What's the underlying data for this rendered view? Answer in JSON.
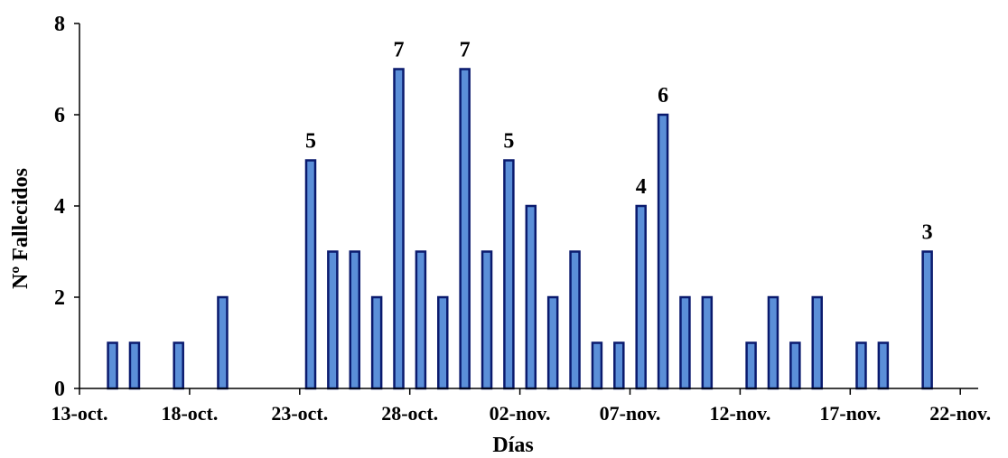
{
  "chart_data": {
    "type": "bar",
    "xlabel": "Días",
    "ylabel": "Nº Fallecidos",
    "ylim": [
      0,
      8
    ],
    "yticks": [
      "0",
      "2",
      "4",
      "6",
      "8"
    ],
    "x_start": "13-oct.",
    "xticks": [
      "13-oct.",
      "18-oct.",
      "23-oct.",
      "28-oct.",
      "02-nov.",
      "07-nov.",
      "12-nov.",
      "17-nov.",
      "22-nov."
    ],
    "grid": false,
    "legend": "none",
    "bar_color": "#5b8fd8",
    "bar_edge_color": "#0a1a6e",
    "bars": [
      {
        "date": "14-oct.",
        "value": 1
      },
      {
        "date": "15-oct.",
        "value": 1
      },
      {
        "date": "17-oct.",
        "value": 1
      },
      {
        "date": "19-oct.",
        "value": 2
      },
      {
        "date": "23-oct.",
        "value": 5,
        "label": "5"
      },
      {
        "date": "24-oct.",
        "value": 3
      },
      {
        "date": "25-oct.",
        "value": 3
      },
      {
        "date": "26-oct.",
        "value": 2
      },
      {
        "date": "27-oct.",
        "value": 7,
        "label": "7"
      },
      {
        "date": "28-oct.",
        "value": 3
      },
      {
        "date": "29-oct.",
        "value": 2
      },
      {
        "date": "30-oct.",
        "value": 7,
        "label": "7"
      },
      {
        "date": "31-oct.",
        "value": 3
      },
      {
        "date": "01-nov.",
        "value": 5,
        "label": "5"
      },
      {
        "date": "02-nov.",
        "value": 4
      },
      {
        "date": "03-nov.",
        "value": 2
      },
      {
        "date": "04-nov.",
        "value": 3
      },
      {
        "date": "05-nov.",
        "value": 1
      },
      {
        "date": "06-nov.",
        "value": 1
      },
      {
        "date": "07-nov.",
        "value": 4,
        "label": "4"
      },
      {
        "date": "08-nov.",
        "value": 6,
        "label": "6"
      },
      {
        "date": "09-nov.",
        "value": 2
      },
      {
        "date": "10-nov.",
        "value": 2
      },
      {
        "date": "12-nov.",
        "value": 1
      },
      {
        "date": "13-nov.",
        "value": 2
      },
      {
        "date": "14-nov.",
        "value": 1
      },
      {
        "date": "15-nov.",
        "value": 2
      },
      {
        "date": "17-nov.",
        "value": 1
      },
      {
        "date": "18-nov.",
        "value": 1
      },
      {
        "date": "20-nov.",
        "value": 3,
        "label": "3"
      }
    ]
  }
}
